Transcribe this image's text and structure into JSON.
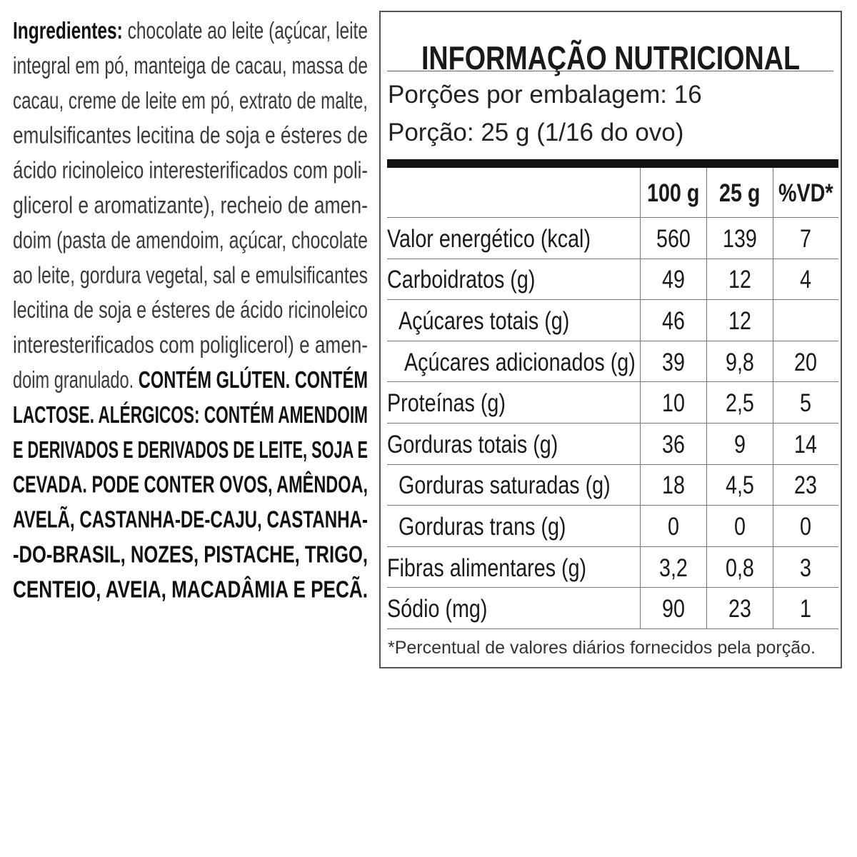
{
  "ingredients": {
    "lines": [
      [
        {
          "t": "Ingredientes:",
          "b": true
        },
        {
          "t": " chocolate ao leite (açúcar, leite",
          "b": false
        }
      ],
      [
        {
          "t": "integral em pó, manteiga de cacau, massa de",
          "b": false
        }
      ],
      [
        {
          "t": "cacau, creme de leite em pó, extrato de malte,",
          "b": false
        }
      ],
      [
        {
          "t": "emulsificantes lecitina de soja e ésteres de",
          "b": false
        }
      ],
      [
        {
          "t": "ácido ricinoleico interesterificados com poli-",
          "b": false
        }
      ],
      [
        {
          "t": "glicerol e aromatizante), recheio de amen-",
          "b": false
        }
      ],
      [
        {
          "t": "doim (pasta de amendoim, açúcar, chocolate",
          "b": false
        }
      ],
      [
        {
          "t": "ao leite, gordura vegetal, sal e emulsificantes",
          "b": false
        }
      ],
      [
        {
          "t": "lecitina de soja e ésteres de ácido ricinoleico",
          "b": false
        }
      ],
      [
        {
          "t": "interesterificados com poliglicerol) e amen-",
          "b": false
        }
      ],
      [
        {
          "t": "doim granulado. ",
          "b": false
        },
        {
          "t": "CONTÉM GLÚTEN. CONTÉM",
          "b": true
        }
      ],
      [
        {
          "t": "LACTOSE. ALÉRGICOS: CONTÉM AMENDOIM",
          "b": true
        }
      ],
      [
        {
          "t": "E DERIVADOS E DERIVADOS DE LEITE, SOJA E",
          "b": true
        }
      ],
      [
        {
          "t": "CEVADA. PODE CONTER OVOS, AMÊNDOA,",
          "b": true
        }
      ],
      [
        {
          "t": "AVELÃ, CASTANHA-DE-CAJU, CASTANHA-",
          "b": true
        }
      ],
      [
        {
          "t": "-DO-BRASIL, NOZES, PISTACHE, TRIGO,",
          "b": true
        }
      ],
      [
        {
          "t": "CENTEIO, AVEIA, MACADÂMIA E PECÃ.",
          "b": true
        }
      ]
    ]
  },
  "nutrition": {
    "title": "INFORMAÇÃO NUTRICIONAL",
    "servings_per_package": "Porções por embalagem: 16",
    "serving_size": "Porção: 25 g (1/16 do ovo)",
    "headers": [
      "",
      "100 g",
      "25 g",
      "%VD*"
    ],
    "rows": [
      {
        "label": "Valor energético (kcal)",
        "indent": 0,
        "v100": "560",
        "v25": "139",
        "vd": "7"
      },
      {
        "label": "Carboidratos (g)",
        "indent": 0,
        "v100": "49",
        "v25": "12",
        "vd": "4"
      },
      {
        "label": "Açúcares totais (g)",
        "indent": 1,
        "v100": "46",
        "v25": "12",
        "vd": ""
      },
      {
        "label": "Açúcares adicionados (g)",
        "indent": 2,
        "v100": "39",
        "v25": "9,8",
        "vd": "20"
      },
      {
        "label": "Proteínas (g)",
        "indent": 0,
        "v100": "10",
        "v25": "2,5",
        "vd": "5"
      },
      {
        "label": "Gorduras totais (g)",
        "indent": 0,
        "v100": "36",
        "v25": "9",
        "vd": "14"
      },
      {
        "label": "Gorduras saturadas (g)",
        "indent": 1,
        "v100": "18",
        "v25": "4,5",
        "vd": "23"
      },
      {
        "label": "Gorduras trans (g)",
        "indent": 1,
        "v100": "0",
        "v25": "0",
        "vd": "0"
      },
      {
        "label": "Fibras alimentares (g)",
        "indent": 0,
        "v100": "3,2",
        "v25": "0,8",
        "vd": "3"
      },
      {
        "label": "Sódio (mg)",
        "indent": 0,
        "v100": "90",
        "v25": "23",
        "vd": "1"
      }
    ],
    "footnote": "*Percentual de valores diários fornecidos pela porção."
  }
}
